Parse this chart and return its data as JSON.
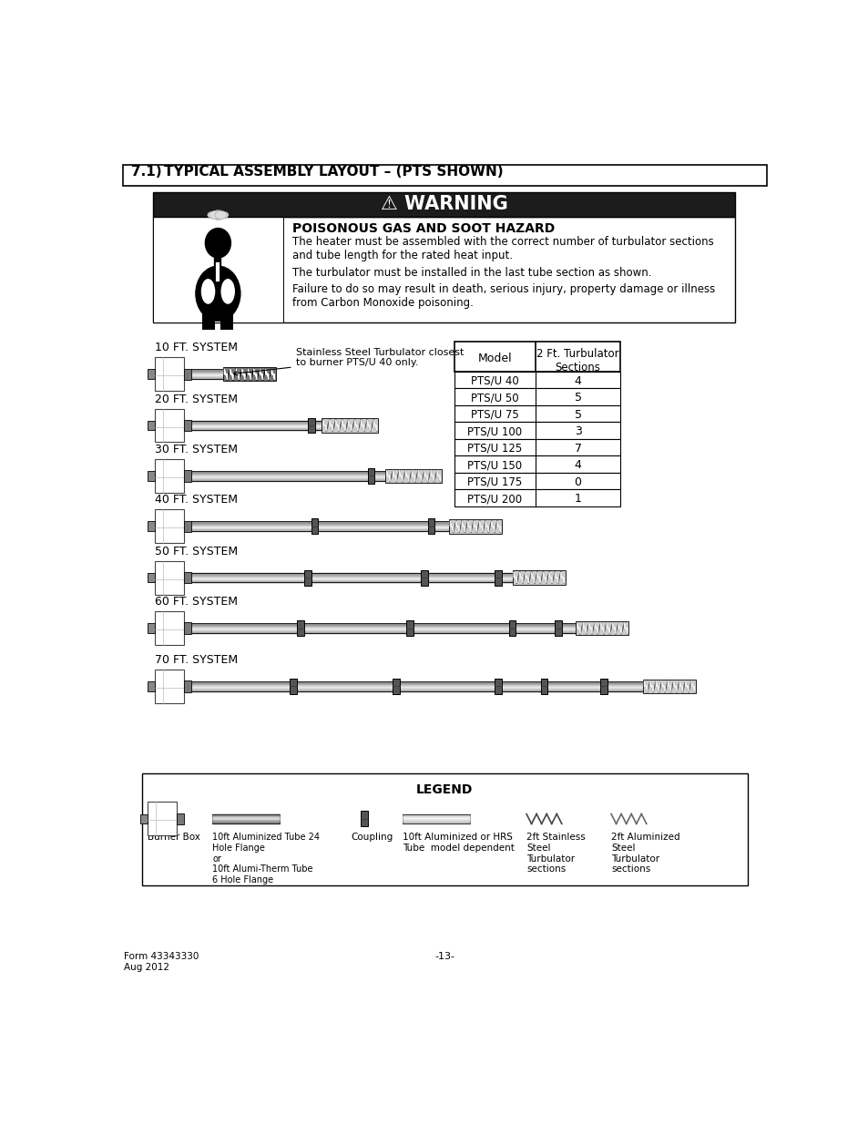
{
  "title": "7.1)       TYPICAL ASSEMBLY LAYOUT – (PTS SHOWN)",
  "warning_title": "⚠ WARNING",
  "warning_subtitle": "POISONOUS GAS AND SOOT HAZARD",
  "warning_text1": "The heater must be assembled with the correct number of turbulator sections\nand tube length for the rated heat input.",
  "warning_text2": "The turbulator must be installed in the last tube section as shown.",
  "warning_text3": "Failure to do so may result in death, serious injury, property damage or illness\nfrom Carbon Monoxide poisoning.",
  "systems": [
    "10 FT. SYSTEM",
    "20 FT. SYSTEM",
    "30 FT. SYSTEM",
    "40 FT. SYSTEM",
    "50 FT. SYSTEM",
    "60 FT. SYSTEM",
    "70 FT. SYSTEM"
  ],
  "table_header": [
    "Model",
    "2 Ft. Turbulator\nSections"
  ],
  "table_rows": [
    [
      "PTS/U 40",
      "4"
    ],
    [
      "PTS/U 50",
      "5"
    ],
    [
      "PTS/U 75",
      "5"
    ],
    [
      "PTS/U 100",
      "3"
    ],
    [
      "PTS/U 125",
      "7"
    ],
    [
      "PTS/U 150",
      "4"
    ],
    [
      "PTS/U 175",
      "0"
    ],
    [
      "PTS/U 200",
      "1"
    ]
  ],
  "annotation": "Stainless Steel Turbulator closest\nto burner PTS/U 40 only.",
  "legend_title": "LEGEND",
  "legend_items": [
    "Burner Box",
    "10ft Aluminized Tube 24\nHole Flange\nor\n10ft Alumi-Therm Tube\n6 Hole Flange",
    "Coupling",
    "10ft Aluminized or HRS\nTube  model dependent",
    "2ft Stainless\nSteel\nTurbulator\nsections",
    "2ft Aluminized\nSteel\nTurbulator\nsections"
  ],
  "footer_left": "Form 43343330\nAug 2012",
  "footer_center": "-13-",
  "bg_color": "#ffffff"
}
